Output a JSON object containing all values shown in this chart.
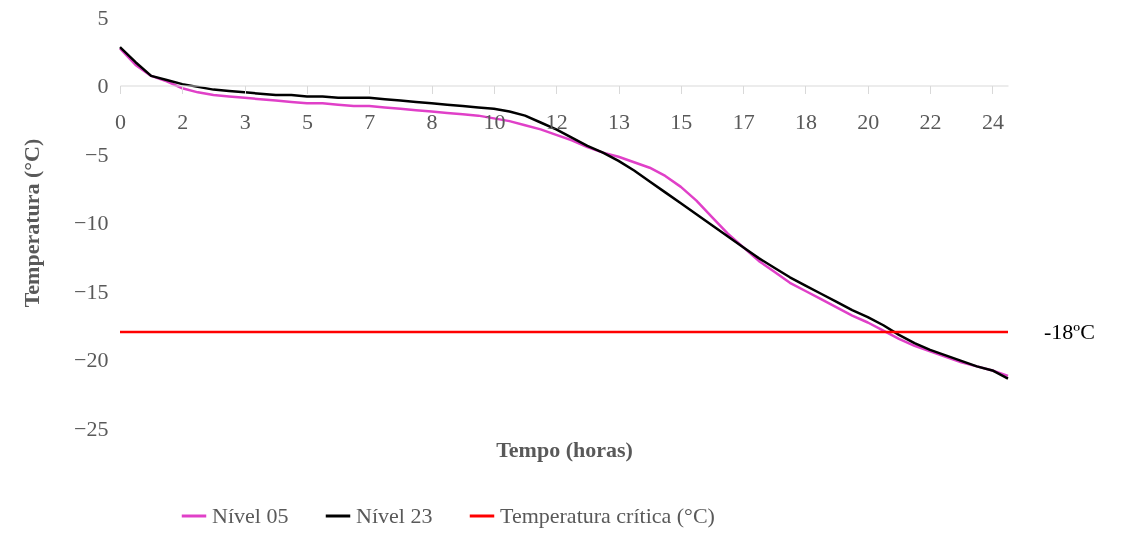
{
  "chart_data": {
    "type": "line",
    "xlabel": "Tempo (horas)",
    "ylabel": "Temperatura (°C)",
    "categories": [
      "0",
      null,
      null,
      null,
      "2",
      null,
      null,
      null,
      "3",
      null,
      null,
      null,
      "5",
      null,
      null,
      null,
      "7",
      null,
      null,
      null,
      "8",
      null,
      null,
      null,
      "10",
      null,
      null,
      null,
      "12",
      null,
      null,
      null,
      "13",
      null,
      null,
      null,
      "15",
      null,
      null,
      null,
      "17",
      null,
      null,
      null,
      "18",
      null,
      null,
      null,
      "20",
      null,
      null,
      null,
      "22",
      null,
      null,
      null,
      "24",
      null
    ],
    "series": [
      {
        "name": "Nível 05",
        "color": "#e040c8",
        "values": [
          2.7,
          1.5,
          0.7,
          0.3,
          -0.2,
          -0.5,
          -0.7,
          -0.8,
          -0.9,
          -1.0,
          -1.1,
          -1.2,
          -1.3,
          -1.3,
          -1.4,
          -1.5,
          -1.5,
          -1.6,
          -1.7,
          -1.8,
          -1.9,
          -2.0,
          -2.1,
          -2.2,
          -2.4,
          -2.6,
          -2.9,
          -3.2,
          -3.6,
          -4.0,
          -4.5,
          -4.9,
          -5.2,
          -5.6,
          -6.0,
          -6.6,
          -7.4,
          -8.4,
          -9.6,
          -10.8,
          -11.8,
          -12.8,
          -13.6,
          -14.4,
          -15.0,
          -15.6,
          -16.2,
          -16.8,
          -17.3,
          -17.9,
          -18.5,
          -19.0,
          -19.4,
          -19.8,
          -20.2,
          -20.5,
          -20.8,
          -21.2
        ]
      },
      {
        "name": "Nível 23",
        "color": "#000000",
        "values": [
          2.8,
          1.7,
          0.7,
          0.4,
          0.1,
          -0.1,
          -0.3,
          -0.4,
          -0.5,
          -0.6,
          -0.7,
          -0.7,
          -0.8,
          -0.8,
          -0.9,
          -0.9,
          -0.9,
          -1.0,
          -1.1,
          -1.2,
          -1.3,
          -1.4,
          -1.5,
          -1.6,
          -1.7,
          -1.9,
          -2.2,
          -2.7,
          -3.2,
          -3.8,
          -4.4,
          -4.9,
          -5.5,
          -6.2,
          -7.0,
          -7.8,
          -8.6,
          -9.4,
          -10.2,
          -11.0,
          -11.8,
          -12.6,
          -13.3,
          -14.0,
          -14.6,
          -15.2,
          -15.8,
          -16.4,
          -16.9,
          -17.5,
          -18.2,
          -18.8,
          -19.3,
          -19.7,
          -20.1,
          -20.5,
          -20.8,
          -21.4
        ]
      },
      {
        "name": "Temperatura crítica (°C)",
        "color": "#ff0000",
        "values": [
          -18,
          -18,
          -18,
          -18,
          -18,
          -18,
          -18,
          -18,
          -18,
          -18,
          -18,
          -18,
          -18,
          -18,
          -18,
          -18,
          -18,
          -18,
          -18,
          -18,
          -18,
          -18,
          -18,
          -18,
          -18,
          -18,
          -18,
          -18,
          -18,
          -18,
          -18,
          -18,
          -18,
          -18,
          -18,
          -18,
          -18,
          -18,
          -18,
          -18,
          -18,
          -18,
          -18,
          -18,
          -18,
          -18,
          -18,
          -18,
          -18,
          -18,
          -18,
          -18,
          -18,
          -18,
          -18,
          -18,
          -18,
          -18
        ]
      }
    ],
    "annotations": [
      "-18ºC"
    ],
    "ylim": [
      -25,
      5
    ],
    "yticks": [
      -25,
      -20,
      -15,
      -10,
      -5,
      0,
      5
    ],
    "grid": false,
    "legend": "bottom",
    "marker": "none"
  }
}
